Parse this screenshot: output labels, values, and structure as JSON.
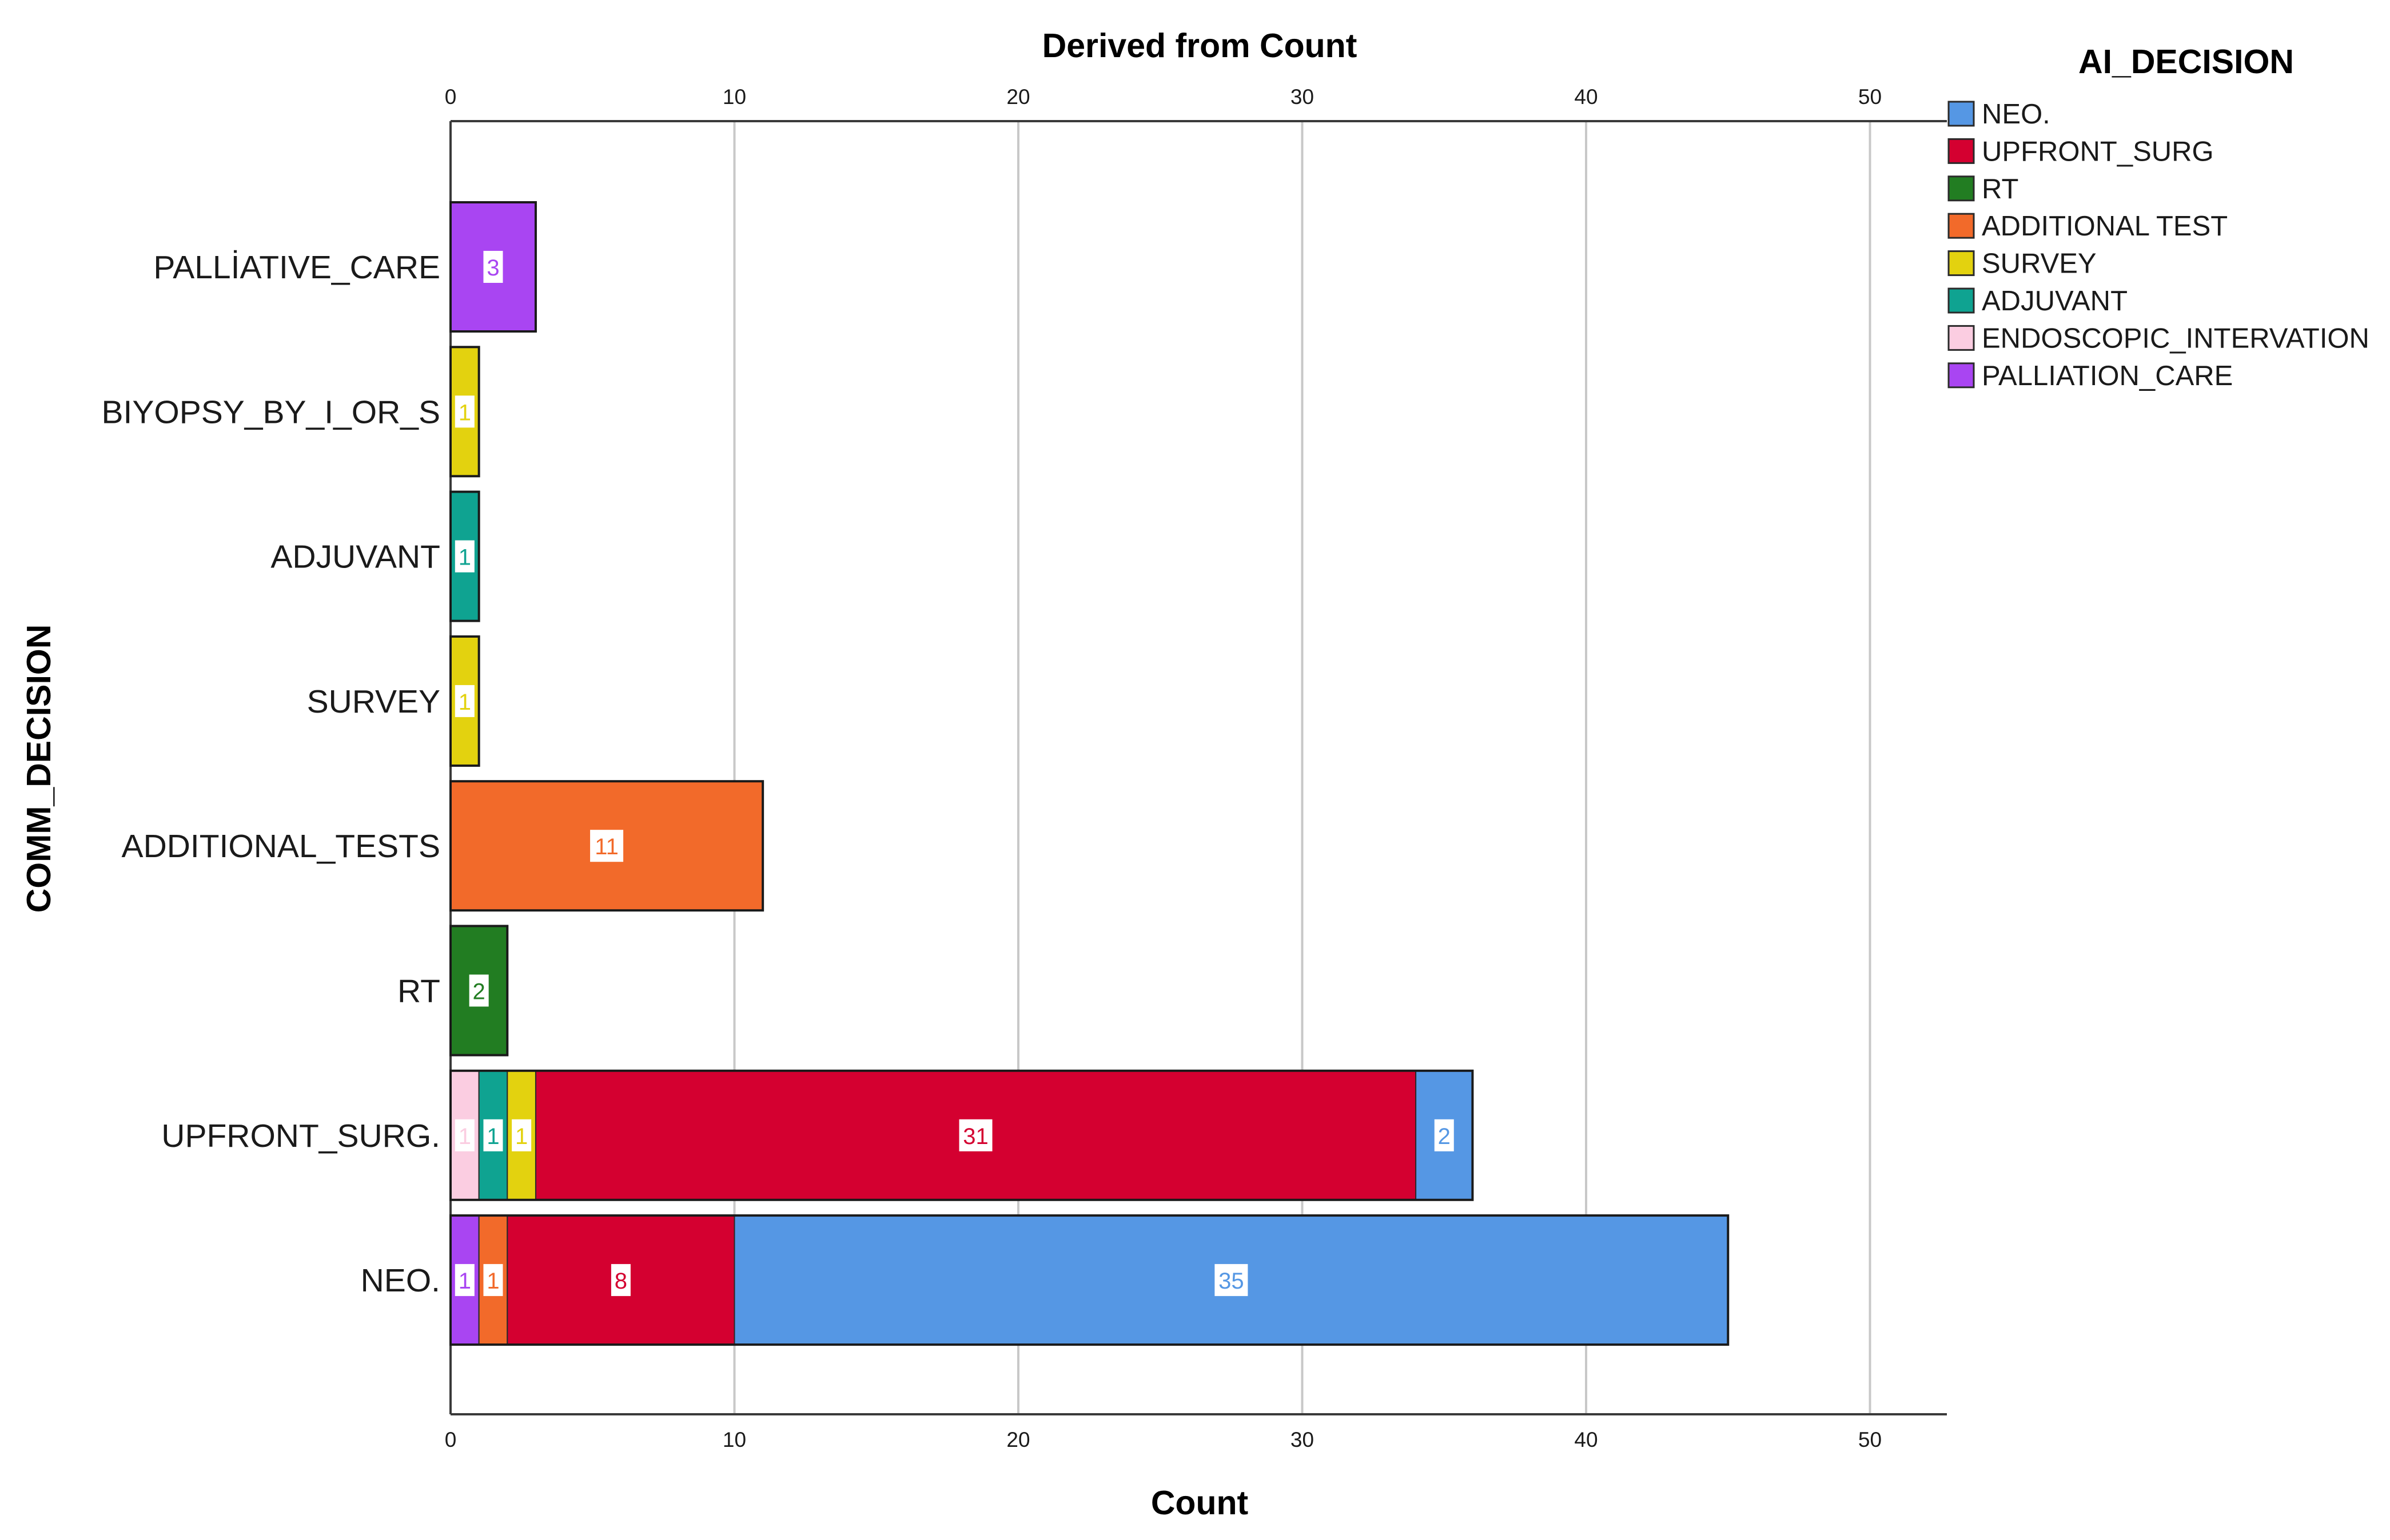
{
  "chart_data": {
    "type": "bar",
    "orientation": "horizontal",
    "stacked": true,
    "title": "Derived from Count",
    "xlabel": "Count",
    "ylabel": "COMM_DECISION",
    "xlim": [
      0,
      52.5
    ],
    "xticks": [
      "0",
      "10",
      "20",
      "30",
      "40",
      "50"
    ],
    "grid": true,
    "legend_title": "AI_DECISION",
    "legend_position": "top-right",
    "categories": [
      "PALLİATIVE_CARE",
      "BIYOPSY_BY_I_OR_S",
      "ADJUVANT",
      "SURVEY",
      "ADDITIONAL_TESTS",
      "RT",
      "UPFRONT_SURG.",
      "NEO."
    ],
    "series": [
      {
        "name": "NEO.",
        "color": "#5597e4",
        "values": [
          0,
          0,
          0,
          0,
          0,
          0,
          2,
          35
        ]
      },
      {
        "name": "UPFRONT_SURG",
        "color": "#d40030",
        "values": [
          0,
          0,
          0,
          0,
          0,
          0,
          31,
          8
        ]
      },
      {
        "name": "RT",
        "color": "#227d22",
        "values": [
          0,
          0,
          0,
          0,
          0,
          2,
          0,
          0
        ]
      },
      {
        "name": "ADDITIONAL TEST",
        "color": "#f26a2a",
        "values": [
          0,
          0,
          0,
          0,
          11,
          0,
          0,
          1
        ]
      },
      {
        "name": "SURVEY",
        "color": "#e3d20f",
        "values": [
          0,
          1,
          0,
          1,
          0,
          0,
          1,
          0
        ]
      },
      {
        "name": "ADJUVANT",
        "color": "#0fa391",
        "values": [
          0,
          0,
          1,
          0,
          0,
          0,
          1,
          0
        ]
      },
      {
        "name": "ENDOSCOPIC_INTERVATION",
        "color": "#fbcde1",
        "values": [
          0,
          0,
          0,
          0,
          0,
          0,
          1,
          0
        ]
      },
      {
        "name": "PALLIATION_CARE",
        "color": "#a945f2",
        "values": [
          3,
          0,
          0,
          0,
          0,
          0,
          0,
          1
        ]
      }
    ],
    "stack_order": [
      "ENDOSCOPIC_INTERVATION",
      "PALLIATION_CARE",
      "ADDITIONAL TEST",
      "ADJUVANT",
      "SURVEY",
      "RT",
      "UPFRONT_SURG",
      "NEO."
    ]
  }
}
